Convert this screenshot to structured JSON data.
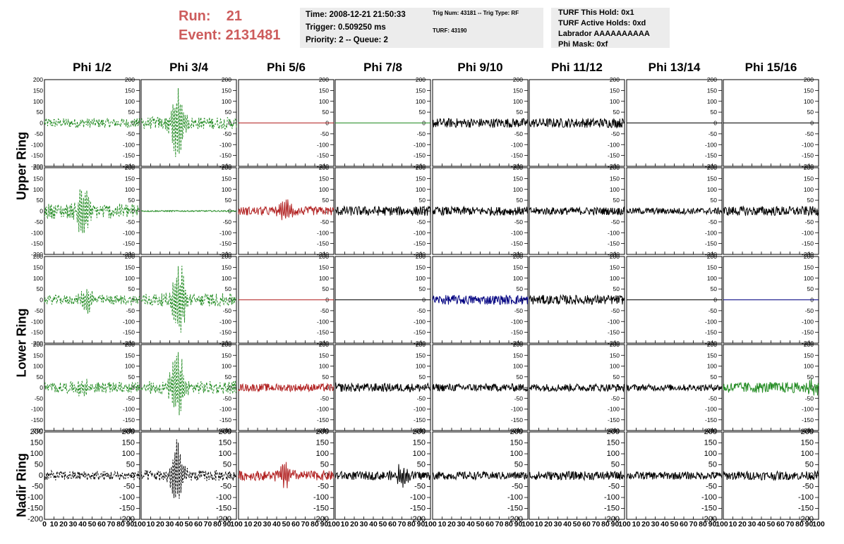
{
  "header": {
    "run_label": "Run:    21",
    "event_label": "Event: 2131481"
  },
  "info_time": {
    "time": "Time: 2008-12-21 21:50:33",
    "trigger": "Trigger: 0.509250 ms",
    "priority": "Priority: 2 -- Queue: 2"
  },
  "info_trig": {
    "trig": "Trig Num: 43181 -- Trig Type: RF",
    "turf": "TURF: 43190"
  },
  "info_turf": {
    "hold": "TURF This Hold: 0x1",
    "active": "TURF Active Holds: 0xd",
    "labrador": "Labrador AAAAAAAAAA",
    "phimask": "Phi Mask: 0xf"
  },
  "colors": {
    "green": "#228b22",
    "red": "#b22222",
    "black": "#000000",
    "blue": "#000080"
  },
  "chart_data": {
    "type": "line",
    "columns": [
      "Phi 1/2",
      "Phi 3/4",
      "Phi 5/6",
      "Phi 7/8",
      "Phi 9/10",
      "Phi 11/12",
      "Phi 13/14",
      "Phi 15/16"
    ],
    "rings": [
      "Upper Ring",
      "Lower Ring",
      "Nadir Ring"
    ],
    "ylim": [
      -200,
      200
    ],
    "yticks": [
      200,
      150,
      100,
      50,
      0,
      -50,
      -100,
      -150,
      -200
    ],
    "xlim": [
      0,
      100
    ],
    "xtick_labels": [
      "0",
      "10",
      "20",
      "30",
      "40",
      "50",
      "60",
      "70",
      "80",
      "90",
      "100"
    ],
    "xtick_labels_last": [
      "10",
      "20",
      "30",
      "40",
      "50",
      "60",
      "70",
      "80",
      "90",
      "100"
    ],
    "rows": [
      [
        {
          "color": "green",
          "style": "dashed",
          "amp": 22,
          "burst": 0,
          "center": 40
        },
        {
          "color": "green",
          "style": "dashed",
          "amp": 28,
          "burst": 190,
          "center": 38
        },
        {
          "color": "red",
          "style": "flat",
          "amp": 0,
          "burst": 0,
          "center": 0
        },
        {
          "color": "green",
          "style": "flat",
          "amp": 0,
          "burst": 0,
          "center": 0
        },
        {
          "color": "black",
          "style": "solid",
          "amp": 22,
          "burst": 0,
          "center": 0
        },
        {
          "color": "black",
          "style": "solid",
          "amp": 22,
          "burst": 0,
          "center": 0
        },
        {
          "color": "black",
          "style": "flat",
          "amp": 0,
          "burst": 0,
          "center": 0
        },
        {
          "color": "black",
          "style": "flat",
          "amp": 0,
          "burst": 0,
          "center": 0
        }
      ],
      [
        {
          "color": "green",
          "style": "dashed",
          "amp": 35,
          "burst": 150,
          "center": 40
        },
        {
          "color": "green",
          "style": "flat",
          "amp": 3,
          "burst": 0,
          "center": 0
        },
        {
          "color": "red",
          "style": "solid",
          "amp": 20,
          "burst": 60,
          "center": 50
        },
        {
          "color": "black",
          "style": "solid",
          "amp": 22,
          "burst": 0,
          "center": 0
        },
        {
          "color": "black",
          "style": "solid",
          "amp": 20,
          "burst": 0,
          "center": 0
        },
        {
          "color": "black",
          "style": "solid",
          "amp": 18,
          "burst": 0,
          "center": 0
        },
        {
          "color": "black",
          "style": "solid",
          "amp": 15,
          "burst": 0,
          "center": 0
        },
        {
          "color": "black",
          "style": "solid",
          "amp": 22,
          "burst": 0,
          "center": 0
        }
      ],
      [
        {
          "color": "green",
          "style": "dashed",
          "amp": 22,
          "burst": 55,
          "center": 45
        },
        {
          "color": "green",
          "style": "dashed",
          "amp": 30,
          "burst": 180,
          "center": 40
        },
        {
          "color": "red",
          "style": "flat",
          "amp": 0,
          "burst": 0,
          "center": 0
        },
        {
          "color": "black",
          "style": "flat",
          "amp": 0,
          "burst": 0,
          "center": 0
        },
        {
          "color": "blue",
          "style": "solid",
          "amp": 22,
          "burst": 0,
          "center": 0
        },
        {
          "color": "black",
          "style": "solid",
          "amp": 22,
          "burst": 0,
          "center": 0
        },
        {
          "color": "black",
          "style": "flat",
          "amp": 0,
          "burst": 0,
          "center": 0
        },
        {
          "color": "blue",
          "style": "flat",
          "amp": 0,
          "burst": 0,
          "center": 0
        }
      ],
      [
        {
          "color": "green",
          "style": "dashed",
          "amp": 25,
          "burst": 60,
          "center": 40
        },
        {
          "color": "green",
          "style": "dashed",
          "amp": 30,
          "burst": 195,
          "center": 38
        },
        {
          "color": "red",
          "style": "solid",
          "amp": 18,
          "burst": 0,
          "center": 0
        },
        {
          "color": "black",
          "style": "solid",
          "amp": 20,
          "burst": 0,
          "center": 0
        },
        {
          "color": "black",
          "style": "solid",
          "amp": 18,
          "burst": 0,
          "center": 0
        },
        {
          "color": "black",
          "style": "solid",
          "amp": 18,
          "burst": 0,
          "center": 0
        },
        {
          "color": "black",
          "style": "solid",
          "amp": 15,
          "burst": 0,
          "center": 0
        },
        {
          "color": "green",
          "style": "solid",
          "amp": 25,
          "burst": 40,
          "center": 95
        }
      ],
      [
        {
          "color": "black",
          "style": "dashed",
          "amp": 22,
          "burst": 0,
          "center": 0
        },
        {
          "color": "black",
          "style": "dashed",
          "amp": 25,
          "burst": 170,
          "center": 38
        },
        {
          "color": "red",
          "style": "solid",
          "amp": 22,
          "burst": 80,
          "center": 48
        },
        {
          "color": "black",
          "style": "solid",
          "amp": 20,
          "burst": 50,
          "center": 70
        },
        {
          "color": "black",
          "style": "solid",
          "amp": 18,
          "burst": 0,
          "center": 0
        },
        {
          "color": "black",
          "style": "solid",
          "amp": 20,
          "burst": 0,
          "center": 0
        },
        {
          "color": "black",
          "style": "solid",
          "amp": 18,
          "burst": 0,
          "center": 0
        },
        {
          "color": "black",
          "style": "solid",
          "amp": 20,
          "burst": 0,
          "center": 0
        }
      ]
    ]
  }
}
